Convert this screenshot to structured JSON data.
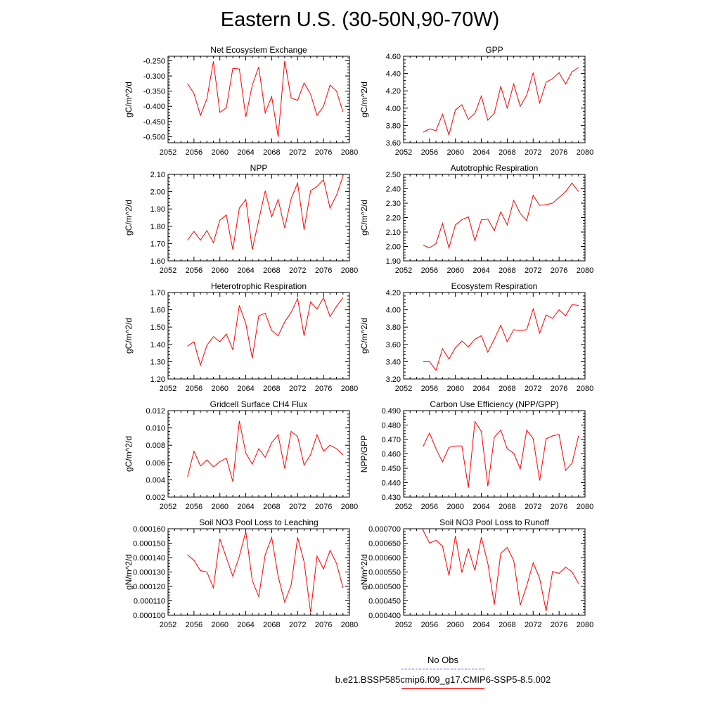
{
  "title": "Eastern U.S. (30-50N,90-70W)",
  "legend": [
    {
      "label": "No Obs",
      "color": "#4a4adf",
      "style": "dashed"
    },
    {
      "label": "b.e21.BSSP585cmip6.f09_g17.CMIP6-SSP5-8.5.002",
      "color": "#ff0000",
      "style": "solid"
    }
  ],
  "chart_data": [
    {
      "type": "line",
      "title": "Net Ecosystem Exchange",
      "xlabel": "",
      "ylabel": "gC/m^2/d",
      "xlim": [
        2052,
        2080
      ],
      "xticks": [
        2052,
        2056,
        2060,
        2064,
        2068,
        2072,
        2076,
        2080
      ],
      "ylim": [
        -0.52,
        -0.235
      ],
      "yticks": [
        "-0.500",
        "-0.450",
        "-0.400",
        "-0.350",
        "-0.300",
        "-0.250"
      ],
      "series": [
        {
          "color": "#ff0000",
          "x": [
            2055,
            2056,
            2057,
            2058,
            2059,
            2060,
            2061,
            2062,
            2063,
            2064,
            2065,
            2066,
            2067,
            2068,
            2069,
            2070,
            2071,
            2072,
            2073,
            2074,
            2075,
            2076,
            2077,
            2078,
            2079
          ],
          "values": [
            -0.325,
            -0.358,
            -0.43,
            -0.375,
            -0.252,
            -0.42,
            -0.405,
            -0.275,
            -0.277,
            -0.435,
            -0.33,
            -0.27,
            -0.422,
            -0.368,
            -0.5,
            -0.25,
            -0.373,
            -0.38,
            -0.323,
            -0.36,
            -0.43,
            -0.4,
            -0.33,
            -0.35,
            -0.418
          ]
        }
      ]
    },
    {
      "type": "line",
      "title": "GPP",
      "xlabel": "",
      "ylabel": "gC/m^2/d",
      "xlim": [
        2052,
        2080
      ],
      "xticks": [
        2052,
        2056,
        2060,
        2064,
        2068,
        2072,
        2076,
        2080
      ],
      "ylim": [
        3.6,
        4.6
      ],
      "yticks": [
        "3.60",
        "3.80",
        "4.00",
        "4.20",
        "4.40",
        "4.60"
      ],
      "series": [
        {
          "color": "#ff0000",
          "x": [
            2055,
            2056,
            2057,
            2058,
            2059,
            2060,
            2061,
            2062,
            2063,
            2064,
            2065,
            2066,
            2067,
            2068,
            2069,
            2070,
            2071,
            2072,
            2073,
            2074,
            2075,
            2076,
            2077,
            2078,
            2079
          ],
          "values": [
            3.72,
            3.76,
            3.74,
            3.93,
            3.69,
            3.98,
            4.04,
            3.87,
            3.94,
            4.14,
            3.86,
            3.94,
            4.25,
            4.0,
            4.28,
            4.02,
            4.15,
            4.41,
            4.06,
            4.3,
            4.34,
            4.41,
            4.28,
            4.42,
            4.47
          ]
        }
      ]
    },
    {
      "type": "line",
      "title": "NPP",
      "xlabel": "",
      "ylabel": "gC/m^2/d",
      "xlim": [
        2052,
        2080
      ],
      "xticks": [
        2052,
        2056,
        2060,
        2064,
        2068,
        2072,
        2076,
        2080
      ],
      "ylim": [
        1.6,
        2.1
      ],
      "yticks": [
        "1.60",
        "1.70",
        "1.80",
        "1.90",
        "2.00",
        "2.10"
      ],
      "series": [
        {
          "color": "#ff0000",
          "x": [
            2055,
            2056,
            2057,
            2058,
            2059,
            2060,
            2061,
            2062,
            2063,
            2064,
            2065,
            2066,
            2067,
            2068,
            2069,
            2070,
            2071,
            2072,
            2073,
            2074,
            2075,
            2076,
            2077,
            2078,
            2079
          ],
          "values": [
            1.72,
            1.77,
            1.72,
            1.775,
            1.705,
            1.835,
            1.865,
            1.665,
            1.905,
            1.955,
            1.665,
            1.835,
            2.005,
            1.855,
            1.955,
            1.79,
            1.96,
            2.05,
            1.78,
            2.005,
            2.03,
            2.07,
            1.905,
            1.98,
            2.09
          ]
        }
      ]
    },
    {
      "type": "line",
      "title": "Autotrophic Respiration",
      "xlabel": "",
      "ylabel": "gC/m^2/d",
      "xlim": [
        2052,
        2080
      ],
      "xticks": [
        2052,
        2056,
        2060,
        2064,
        2068,
        2072,
        2076,
        2080
      ],
      "ylim": [
        1.9,
        2.5
      ],
      "yticks": [
        "1.90",
        "2.00",
        "2.10",
        "2.20",
        "2.30",
        "2.40",
        "2.50"
      ],
      "series": [
        {
          "color": "#ff0000",
          "x": [
            2055,
            2056,
            2057,
            2058,
            2059,
            2060,
            2061,
            2062,
            2063,
            2064,
            2065,
            2066,
            2067,
            2068,
            2069,
            2070,
            2071,
            2072,
            2073,
            2074,
            2075,
            2076,
            2077,
            2078,
            2079
          ],
          "values": [
            2.01,
            1.99,
            2.02,
            2.16,
            1.99,
            2.15,
            2.185,
            2.205,
            2.04,
            2.185,
            2.19,
            2.11,
            2.24,
            2.15,
            2.32,
            2.23,
            2.18,
            2.355,
            2.285,
            2.29,
            2.3,
            2.34,
            2.38,
            2.44,
            2.38
          ]
        }
      ]
    },
    {
      "type": "line",
      "title": "Heterotrophic Respiration",
      "xlabel": "",
      "ylabel": "gC/m^2/d",
      "xlim": [
        2052,
        2080
      ],
      "xticks": [
        2052,
        2056,
        2060,
        2064,
        2068,
        2072,
        2076,
        2080
      ],
      "ylim": [
        1.2,
        1.7
      ],
      "yticks": [
        "1.20",
        "1.30",
        "1.40",
        "1.50",
        "1.60",
        "1.70"
      ],
      "series": [
        {
          "color": "#ff0000",
          "x": [
            2055,
            2056,
            2057,
            2058,
            2059,
            2060,
            2061,
            2062,
            2063,
            2064,
            2065,
            2066,
            2067,
            2068,
            2069,
            2070,
            2071,
            2072,
            2073,
            2074,
            2075,
            2076,
            2077,
            2078,
            2079
          ],
          "values": [
            1.39,
            1.415,
            1.28,
            1.395,
            1.445,
            1.415,
            1.46,
            1.37,
            1.625,
            1.52,
            1.32,
            1.565,
            1.58,
            1.48,
            1.45,
            1.53,
            1.585,
            1.665,
            1.45,
            1.645,
            1.605,
            1.67,
            1.56,
            1.62,
            1.67
          ]
        }
      ]
    },
    {
      "type": "line",
      "title": "Ecosystem Respiration",
      "xlabel": "",
      "ylabel": "gC/m^2/d",
      "xlim": [
        2052,
        2080
      ],
      "xticks": [
        2052,
        2056,
        2060,
        2064,
        2068,
        2072,
        2076,
        2080
      ],
      "ylim": [
        3.2,
        4.2
      ],
      "yticks": [
        "3.20",
        "3.40",
        "3.60",
        "3.80",
        "4.00",
        "4.20"
      ],
      "series": [
        {
          "color": "#ff0000",
          "x": [
            2055,
            2056,
            2057,
            2058,
            2059,
            2060,
            2061,
            2062,
            2063,
            2064,
            2065,
            2066,
            2067,
            2068,
            2069,
            2070,
            2071,
            2072,
            2073,
            2074,
            2075,
            2076,
            2077,
            2078,
            2079
          ],
          "values": [
            3.4,
            3.4,
            3.3,
            3.55,
            3.43,
            3.56,
            3.64,
            3.57,
            3.66,
            3.7,
            3.51,
            3.66,
            3.82,
            3.63,
            3.77,
            3.76,
            3.77,
            4.01,
            3.73,
            3.94,
            3.9,
            4.0,
            3.93,
            4.06,
            4.05
          ]
        }
      ]
    },
    {
      "type": "line",
      "title": "Gridcell Surface CH4 Flux",
      "xlabel": "",
      "ylabel": "gC/m^2/d",
      "xlim": [
        2052,
        2080
      ],
      "xticks": [
        2052,
        2056,
        2060,
        2064,
        2068,
        2072,
        2076,
        2080
      ],
      "ylim": [
        0.002,
        0.012
      ],
      "yticks": [
        "0.002",
        "0.004",
        "0.006",
        "0.008",
        "0.010",
        "0.012"
      ],
      "series": [
        {
          "color": "#ff0000",
          "x": [
            2055,
            2056,
            2057,
            2058,
            2059,
            2060,
            2061,
            2062,
            2063,
            2064,
            2065,
            2066,
            2067,
            2068,
            2069,
            2070,
            2071,
            2072,
            2073,
            2074,
            2075,
            2076,
            2077,
            2078,
            2079
          ],
          "values": [
            0.0043,
            0.0073,
            0.0056,
            0.0063,
            0.0055,
            0.0061,
            0.0065,
            0.0038,
            0.0108,
            0.0071,
            0.0058,
            0.0076,
            0.0066,
            0.0083,
            0.0092,
            0.0053,
            0.0096,
            0.009,
            0.0057,
            0.0069,
            0.0092,
            0.0073,
            0.008,
            0.0076,
            0.0069
          ]
        }
      ]
    },
    {
      "type": "line",
      "title": "Carbon Use Efficiency (NPP/GPP)",
      "xlabel": "",
      "ylabel": "NPP/GPP",
      "xlim": [
        2052,
        2080
      ],
      "xticks": [
        2052,
        2056,
        2060,
        2064,
        2068,
        2072,
        2076,
        2080
      ],
      "ylim": [
        0.43,
        0.49
      ],
      "yticks": [
        "0.430",
        "0.440",
        "0.450",
        "0.460",
        "0.470",
        "0.480",
        "0.490"
      ],
      "series": [
        {
          "color": "#ff0000",
          "x": [
            2055,
            2056,
            2057,
            2058,
            2059,
            2060,
            2061,
            2062,
            2063,
            2064,
            2065,
            2066,
            2067,
            2068,
            2069,
            2070,
            2071,
            2072,
            2073,
            2074,
            2075,
            2076,
            2077,
            2078,
            2079
          ],
          "values": [
            0.465,
            0.4745,
            0.4635,
            0.4545,
            0.4645,
            0.4655,
            0.4655,
            0.4365,
            0.4825,
            0.4755,
            0.4375,
            0.4715,
            0.4765,
            0.4635,
            0.4605,
            0.4495,
            0.4765,
            0.4705,
            0.4415,
            0.4705,
            0.4725,
            0.4735,
            0.4485,
            0.4535,
            0.4725
          ]
        }
      ]
    },
    {
      "type": "line",
      "title": "Soil NO3 Pool Loss to Leaching",
      "xlabel": "",
      "ylabel": "gN/m^2/d",
      "xlim": [
        2052,
        2080
      ],
      "xticks": [
        2052,
        2056,
        2060,
        2064,
        2068,
        2072,
        2076,
        2080
      ],
      "ylim": [
        0.0001,
        0.00016
      ],
      "yticks": [
        "0.000100",
        "0.000110",
        "0.000120",
        "0.000130",
        "0.000140",
        "0.000150",
        "0.000160"
      ],
      "series": [
        {
          "color": "#ff0000",
          "x": [
            2055,
            2056,
            2057,
            2058,
            2059,
            2060,
            2061,
            2062,
            2063,
            2064,
            2065,
            2066,
            2067,
            2068,
            2069,
            2070,
            2071,
            2072,
            2073,
            2074,
            2075,
            2076,
            2077,
            2078,
            2079
          ],
          "values": [
            0.000142,
            0.000138,
            0.000131,
            0.00013,
            0.000119,
            0.000153,
            0.00014,
            0.000127,
            0.000141,
            0.000158,
            0.000124,
            0.000113,
            0.000142,
            0.000154,
            0.000127,
            0.000109,
            0.000121,
            0.000154,
            0.000137,
            0.000102,
            0.000141,
            0.000132,
            0.000145,
            0.000136,
            0.000119
          ]
        }
      ]
    },
    {
      "type": "line",
      "title": "Soil NO3 Pool Loss to Runoff",
      "xlabel": "",
      "ylabel": "gN/m^2/d",
      "xlim": [
        2052,
        2080
      ],
      "xticks": [
        2052,
        2056,
        2060,
        2064,
        2068,
        2072,
        2076,
        2080
      ],
      "ylim": [
        0.0004,
        0.0007
      ],
      "yticks": [
        "0.000400",
        "0.000450",
        "0.000500",
        "0.000550",
        "0.000600",
        "0.000650",
        "0.000700"
      ],
      "series": [
        {
          "color": "#ff0000",
          "x": [
            2055,
            2056,
            2057,
            2058,
            2059,
            2060,
            2061,
            2062,
            2063,
            2064,
            2065,
            2066,
            2067,
            2068,
            2069,
            2070,
            2071,
            2072,
            2073,
            2074,
            2075,
            2076,
            2077,
            2078,
            2079
          ],
          "values": [
            0.000695,
            0.00065,
            0.00066,
            0.00064,
            0.000538,
            0.000675,
            0.000548,
            0.00063,
            0.000555,
            0.00067,
            0.00058,
            0.000437,
            0.000615,
            0.000635,
            0.00059,
            0.000435,
            0.000502,
            0.000582,
            0.000528,
            0.000415,
            0.000552,
            0.000545,
            0.000567,
            0.00055,
            0.00051
          ]
        }
      ]
    }
  ]
}
